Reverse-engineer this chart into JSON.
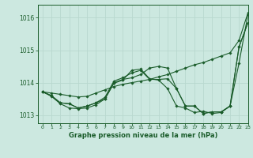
{
  "title": "Graphe pression niveau de la mer (hPa)",
  "bg_color": "#cce8e0",
  "grid_color": "#b8d8cf",
  "line_color": "#1a5c2a",
  "xlim": [
    -0.5,
    23
  ],
  "ylim": [
    1012.75,
    1016.4
  ],
  "yticks": [
    1013,
    1014,
    1015,
    1016
  ],
  "xticks": [
    0,
    1,
    2,
    3,
    4,
    5,
    6,
    7,
    8,
    9,
    10,
    11,
    12,
    13,
    14,
    15,
    16,
    17,
    18,
    19,
    20,
    21,
    22,
    23
  ],
  "series": [
    [
      1013.72,
      1013.68,
      1013.64,
      1013.6,
      1013.56,
      1013.58,
      1013.68,
      1013.78,
      1013.88,
      1013.95,
      1014.0,
      1014.05,
      1014.1,
      1014.18,
      1014.25,
      1014.35,
      1014.45,
      1014.55,
      1014.62,
      1014.72,
      1014.82,
      1014.92,
      1015.3,
      1016.15
    ],
    [
      1013.72,
      1013.6,
      1013.38,
      1013.35,
      1013.22,
      1013.28,
      1013.38,
      1013.5,
      1014.0,
      1014.1,
      1014.15,
      1014.25,
      1014.45,
      1014.5,
      1014.45,
      1013.82,
      1013.28,
      1013.28,
      1013.05,
      1013.1,
      1013.1,
      1013.28,
      1015.1,
      1015.85
    ],
    [
      1013.72,
      1013.6,
      1013.38,
      1013.35,
      1013.22,
      1013.28,
      1013.38,
      1013.55,
      1014.05,
      1014.15,
      1014.3,
      1014.38,
      1014.1,
      1014.1,
      1014.12,
      1013.82,
      1013.28,
      1013.28,
      1013.05,
      1013.1,
      1013.1,
      1013.28,
      1015.1,
      1015.85
    ],
    [
      1013.72,
      1013.58,
      1013.35,
      1013.22,
      1013.2,
      1013.22,
      1013.32,
      1013.5,
      1013.98,
      1014.08,
      1014.38,
      1014.42,
      1014.12,
      1014.08,
      1013.82,
      1013.28,
      1013.22,
      1013.08,
      1013.12,
      1013.05,
      1013.08,
      1013.28,
      1014.6,
      1016.1
    ]
  ]
}
